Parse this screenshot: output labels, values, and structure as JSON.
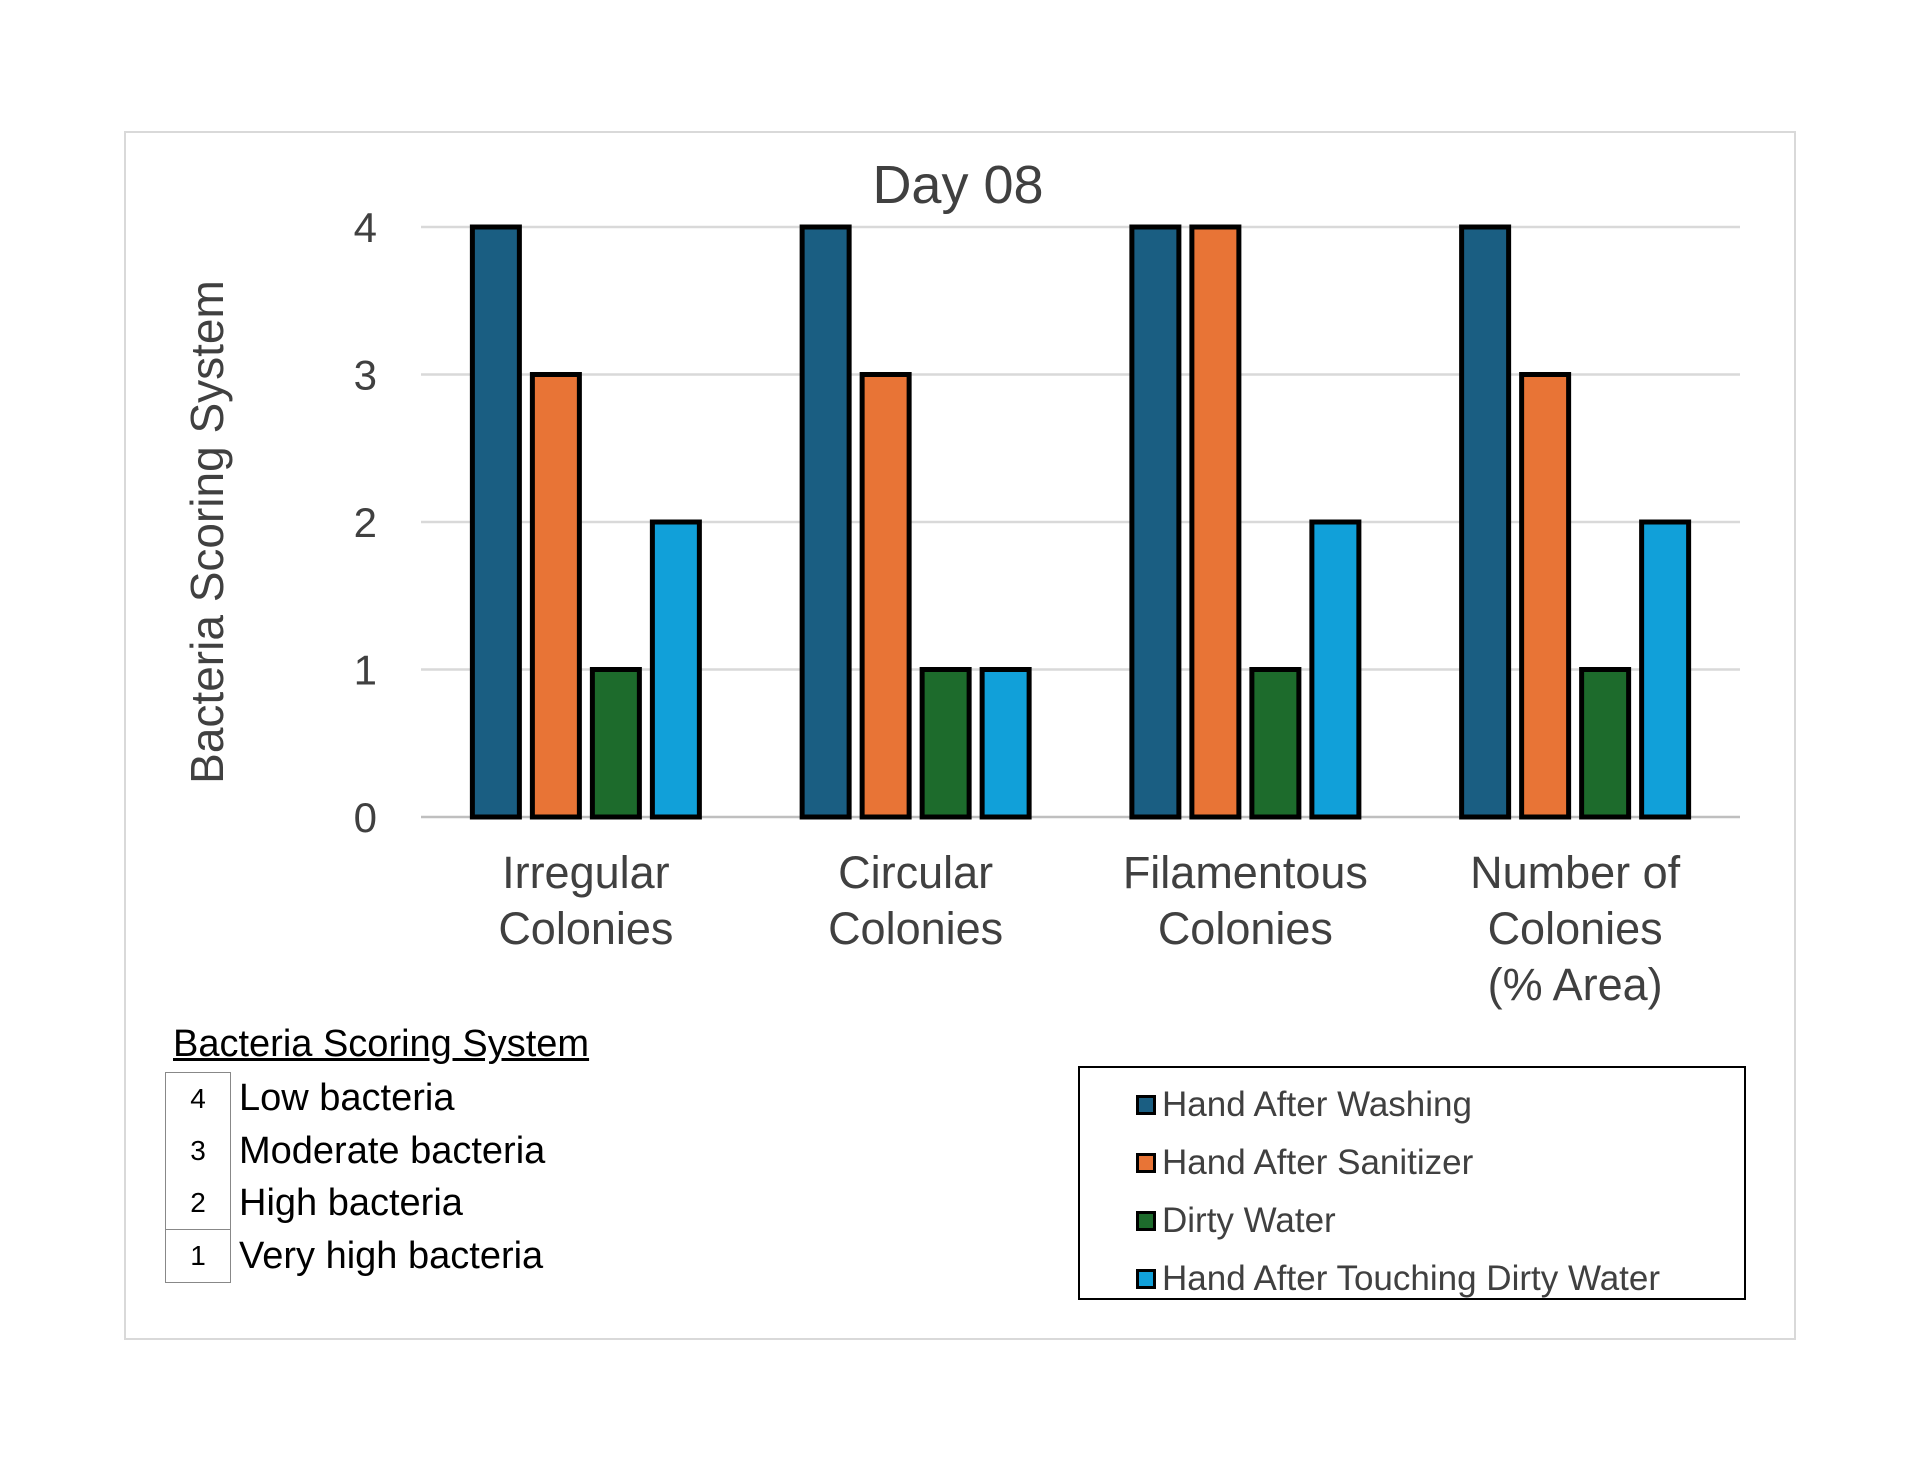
{
  "chart_data": {
    "type": "bar",
    "title": "Day 08",
    "ylabel": "Bacteria Scoring System",
    "xlabel": "",
    "ylim": [
      0,
      4
    ],
    "yticks": [
      0,
      1,
      2,
      3,
      4
    ],
    "grid": true,
    "legend_position": "bottom-right",
    "categories": [
      [
        "Irregular",
        "Colonies"
      ],
      [
        "Circular",
        "Colonies"
      ],
      [
        "Filamentous",
        "Colonies"
      ],
      [
        "Number of",
        "Colonies",
        "(% Area)"
      ]
    ],
    "series": [
      {
        "name": "Hand After Washing",
        "color": "#1a5e82",
        "values": [
          4,
          4,
          4,
          4
        ]
      },
      {
        "name": "Hand After Sanitizer",
        "color": "#e87436",
        "values": [
          3,
          3,
          4,
          3
        ]
      },
      {
        "name": "Dirty Water",
        "color": "#1d6b2c",
        "values": [
          1,
          1,
          1,
          1
        ]
      },
      {
        "name": "Hand After Touching Dirty Water",
        "color": "#11a0d9",
        "values": [
          2,
          1,
          2,
          2
        ]
      }
    ]
  },
  "scoring": {
    "title": "Bacteria Scoring System",
    "rows": [
      {
        "score": "4",
        "label": "Low bacteria"
      },
      {
        "score": "3",
        "label": "Moderate bacteria"
      },
      {
        "score": "2",
        "label": "High bacteria"
      },
      {
        "score": "1",
        "label": "Very high bacteria"
      }
    ]
  }
}
